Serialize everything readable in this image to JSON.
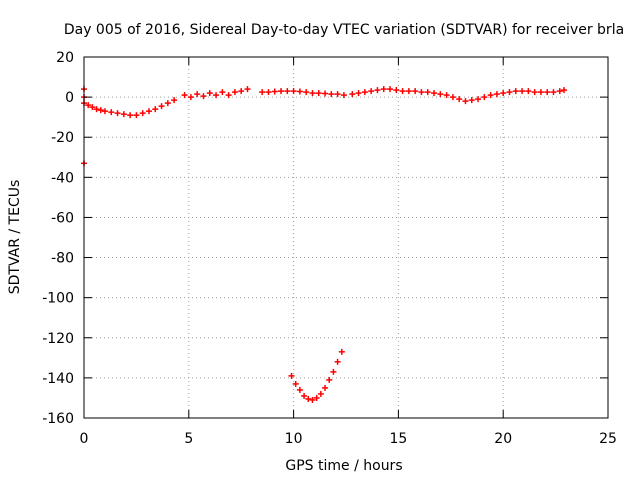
{
  "chart_data": {
    "type": "scatter",
    "title": "Day 005 of 2016, Sidereal Day-to-day VTEC variation (SDTVAR) for receiver brla",
    "xlabel": "GPS time / hours",
    "ylabel": "SDTVAR / TECUs",
    "xlim": [
      0,
      25
    ],
    "ylim": [
      -160,
      20
    ],
    "xticks": [
      0,
      5,
      10,
      15,
      20,
      25
    ],
    "yticks": [
      20,
      0,
      -20,
      -40,
      -60,
      -80,
      -100,
      -120,
      -140,
      -160
    ],
    "grid": true,
    "legend": "none",
    "series_color": "#ff0000",
    "series": [
      {
        "points": [
          [
            0.0,
            4
          ],
          [
            0.0,
            0
          ],
          [
            0.0,
            -3
          ],
          [
            0.0,
            -33
          ],
          [
            0.2,
            -4
          ],
          [
            0.4,
            -5
          ],
          [
            0.6,
            -6
          ],
          [
            0.8,
            -6.5
          ],
          [
            1.0,
            -7
          ],
          [
            1.3,
            -7.5
          ],
          [
            1.6,
            -8
          ],
          [
            1.9,
            -8.5
          ],
          [
            2.2,
            -9
          ],
          [
            2.5,
            -9
          ],
          [
            2.8,
            -8
          ],
          [
            3.1,
            -7
          ],
          [
            3.4,
            -6
          ],
          [
            3.7,
            -4.5
          ],
          [
            4.0,
            -3
          ],
          [
            4.3,
            -1.5
          ],
          [
            4.8,
            1
          ],
          [
            5.1,
            0
          ],
          [
            5.4,
            1.5
          ],
          [
            5.7,
            0.5
          ],
          [
            6.0,
            2
          ],
          [
            6.3,
            1
          ],
          [
            6.6,
            2.5
          ],
          [
            6.9,
            1
          ],
          [
            7.2,
            2.5
          ],
          [
            7.5,
            3
          ],
          [
            7.8,
            4
          ],
          [
            8.5,
            2.5
          ],
          [
            8.8,
            2.5
          ],
          [
            9.1,
            2.8
          ],
          [
            9.4,
            3
          ],
          [
            9.7,
            3
          ],
          [
            10.0,
            3
          ],
          [
            10.3,
            2.8
          ],
          [
            10.6,
            2.5
          ],
          [
            10.9,
            2
          ],
          [
            11.2,
            2
          ],
          [
            11.5,
            1.8
          ],
          [
            11.8,
            1.5
          ],
          [
            12.1,
            1.5
          ],
          [
            12.4,
            1
          ],
          [
            12.8,
            1.5
          ],
          [
            13.1,
            2
          ],
          [
            13.4,
            2.5
          ],
          [
            13.7,
            3
          ],
          [
            14.0,
            3.5
          ],
          [
            14.3,
            4
          ],
          [
            14.6,
            4
          ],
          [
            14.9,
            3.5
          ],
          [
            15.2,
            3
          ],
          [
            15.5,
            3
          ],
          [
            15.8,
            3
          ],
          [
            16.1,
            2.5
          ],
          [
            16.4,
            2.5
          ],
          [
            16.7,
            2
          ],
          [
            17.0,
            1.5
          ],
          [
            17.3,
            1
          ],
          [
            17.6,
            0
          ],
          [
            17.9,
            -1
          ],
          [
            18.2,
            -2
          ],
          [
            18.5,
            -1.5
          ],
          [
            18.8,
            -1
          ],
          [
            19.1,
            0
          ],
          [
            19.4,
            1
          ],
          [
            19.7,
            1.5
          ],
          [
            20.0,
            2
          ],
          [
            20.3,
            2.5
          ],
          [
            20.6,
            3
          ],
          [
            20.9,
            3
          ],
          [
            21.2,
            3
          ],
          [
            21.5,
            2.5
          ],
          [
            21.8,
            2.5
          ],
          [
            22.1,
            2.5
          ],
          [
            22.4,
            2.5
          ],
          [
            22.7,
            3
          ],
          [
            22.9,
            3.5
          ],
          [
            9.9,
            -139
          ],
          [
            10.1,
            -143
          ],
          [
            10.3,
            -146
          ],
          [
            10.5,
            -149
          ],
          [
            10.7,
            -150.5
          ],
          [
            10.9,
            -151
          ],
          [
            11.1,
            -150
          ],
          [
            11.3,
            -148
          ],
          [
            11.5,
            -145
          ],
          [
            11.7,
            -141
          ],
          [
            11.9,
            -137
          ],
          [
            12.1,
            -132
          ],
          [
            12.3,
            -127
          ]
        ]
      }
    ]
  }
}
